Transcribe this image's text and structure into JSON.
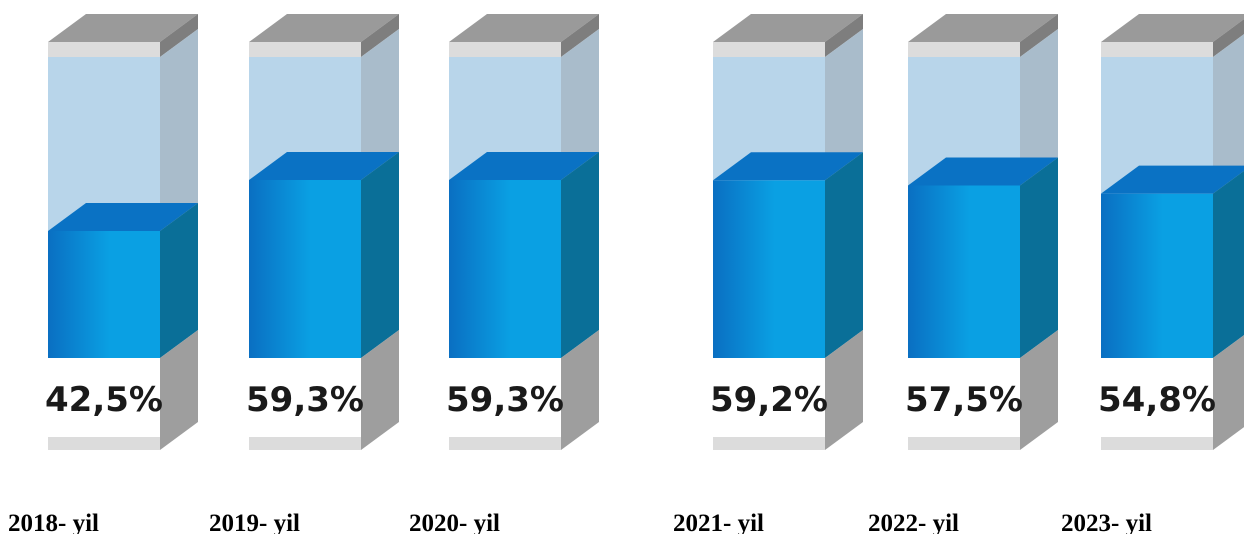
{
  "chart_data": {
    "type": "bar",
    "categories": [
      "2018- yil",
      "2019- yil",
      "2020- yil",
      "2021- yil",
      "2022- yil",
      "2023- yil"
    ],
    "values": [
      42.5,
      59.3,
      59.3,
      59.2,
      57.5,
      54.8
    ],
    "value_labels": [
      "42,5%",
      "59,3%",
      "59,3%",
      "59,2%",
      "57,5%",
      "54,8%"
    ],
    "ylim": [
      0,
      100
    ],
    "grid": false,
    "legend": "none",
    "colors": {
      "fill_front": "#0aa0e3",
      "fill_front_dark": "#0a6fc2",
      "fill_side": "#0a6f98",
      "fill_top": "#0a72c4",
      "glass_front": "#b8d5ea",
      "glass_side": "#a9bccb",
      "cap_top": "#9a9a9a",
      "cap_side": "#7e7e7e",
      "cap_face": "#dcdcdc",
      "label_text": "#1a1a1a"
    }
  }
}
